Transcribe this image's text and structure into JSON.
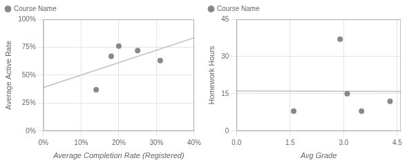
{
  "chart_data": [
    {
      "type": "scatter",
      "x_label": "Average Completion Rate (Registered)",
      "y_label": "Average Active Rate",
      "series": [
        {
          "type": "line",
          "color": "#c0c0c0",
          "x": [
            0.0,
            0.4
          ],
          "values": [
            0.3893,
            0.835
          ]
        },
        {
          "name": "Course Name",
          "type": "scatter",
          "color": "#888888",
          "x": [
            0.14,
            0.18,
            0.2,
            0.25,
            0.31
          ],
          "values": [
            0.37,
            0.67,
            0.76,
            0.72,
            0.63
          ]
        }
      ],
      "xlim": [
        0.0,
        0.4
      ],
      "ylim": [
        0.0,
        1.0
      ],
      "xticks": [
        {
          "value": 0.0,
          "label": "0%"
        },
        {
          "value": 0.1,
          "label": "10%"
        },
        {
          "value": 0.2,
          "label": "20%"
        },
        {
          "value": 0.3,
          "label": "30%"
        },
        {
          "value": 0.4,
          "label": "40%"
        }
      ],
      "yticks": [
        {
          "value": 0.0,
          "label": "0%"
        },
        {
          "value": 0.25,
          "label": "25%"
        },
        {
          "value": 0.5,
          "label": "50%"
        },
        {
          "value": 0.75,
          "label": "75%"
        },
        {
          "value": 1.0,
          "label": "100%"
        }
      ],
      "grid": true,
      "legend": "upper left"
    },
    {
      "type": "scatter",
      "x_label": "Avg Grade",
      "y_label": "Homework Hours",
      "series": [
        {
          "type": "line",
          "color": "#c0c0c0",
          "x": [
            0,
            4.6
          ],
          "values": [
            16.1584,
            15.9218
          ]
        },
        {
          "name": "Course Name",
          "type": "scatter",
          "color": "#888888",
          "x": [
            1.6,
            2.9,
            3.1,
            3.5,
            4.3
          ],
          "values": [
            8,
            37,
            15,
            8,
            12
          ]
        }
      ],
      "xlim": [
        0,
        4.6
      ],
      "ylim": [
        0,
        45
      ],
      "xticks": [
        {
          "value": 0,
          "label": "0.0"
        },
        {
          "value": 1.5,
          "label": "1.5"
        },
        {
          "value": 3.0,
          "label": "3.0"
        },
        {
          "value": 4.5,
          "label": "4.5"
        }
      ],
      "yticks": [
        0,
        15,
        30,
        45
      ],
      "grid": true,
      "legend": "upper left"
    }
  ]
}
